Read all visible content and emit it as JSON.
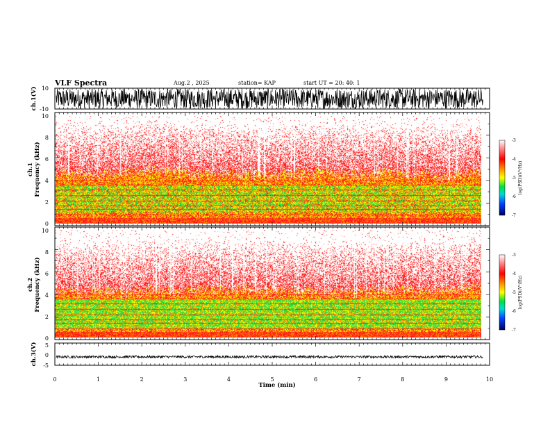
{
  "header": {
    "title": "VLF Spectra",
    "date": "Aug.2  , 2025",
    "station": "station= KAP",
    "start": "start  UT  =   20: 40: 1"
  },
  "chart_data": [
    {
      "type": "line",
      "name": "ch.1 waveform",
      "ylabel": "ch.1(V)",
      "ylim": [
        -10,
        10
      ],
      "yticks": [
        "10",
        "-10"
      ],
      "xlim": [
        0,
        10
      ],
      "description_of_series": "dense noisy voltage trace filling most of the range"
    },
    {
      "type": "heatmap",
      "name": "ch.1 spectrogram",
      "ylabel": "ch.1\nFrequency (kHz)",
      "ylabel_lines": [
        "ch.1",
        "Frequency (kHz)"
      ],
      "ylim": [
        0,
        10
      ],
      "yticks": [
        "0",
        "2",
        "4",
        "6",
        "8",
        "10"
      ],
      "xlim": [
        0,
        9.85
      ],
      "colorbar": {
        "label": "log(PSD)(V²/Hz)",
        "range": [
          -7,
          -3
        ],
        "ticks": [
          "-3",
          "-4",
          "-5",
          "-6",
          "-7"
        ]
      },
      "bands_kHz": {
        "red_floor_below": 4.2,
        "green_band": [
          1.0,
          3.6
        ],
        "white_above": 8.0
      }
    },
    {
      "type": "heatmap",
      "name": "ch.2 spectrogram",
      "ylabel": "ch.2\nFrequency (kHz)",
      "ylabel_lines": [
        "ch.2",
        "Frequency (kHz)"
      ],
      "ylim": [
        0,
        10
      ],
      "yticks": [
        "0",
        "2",
        "4",
        "6",
        "8",
        "10"
      ],
      "xlim": [
        0,
        9.85
      ],
      "colorbar": {
        "label": "log(PSD)(V²/Hz)",
        "range": [
          -7,
          -3
        ],
        "ticks": [
          "-3",
          "-4",
          "-5",
          "-6",
          "-7"
        ]
      },
      "bands_kHz": {
        "red_floor_below": 4.0,
        "green_band": [
          0.8,
          3.6
        ],
        "white_above": 8.0
      }
    },
    {
      "type": "line",
      "name": "ch.3 waveform",
      "ylabel": "ch.3(V)",
      "ylim": [
        -5,
        5
      ],
      "yticks": [
        "5",
        "0",
        "-5"
      ],
      "xlim": [
        0,
        10
      ],
      "level_V": -1.2,
      "description_of_series": "thin band of small oscillation near -1 V"
    }
  ],
  "xaxis": {
    "label": "Time (min)",
    "range": [
      0,
      10
    ],
    "ticks": [
      "0",
      "1",
      "2",
      "3",
      "4",
      "5",
      "6",
      "7",
      "8",
      "9",
      "10"
    ]
  },
  "colors": {
    "red": "#ff1a1a",
    "orange": "#ff8c00",
    "yellow": "#f2ff00",
    "green": "#18e04a",
    "black": "#000000"
  }
}
